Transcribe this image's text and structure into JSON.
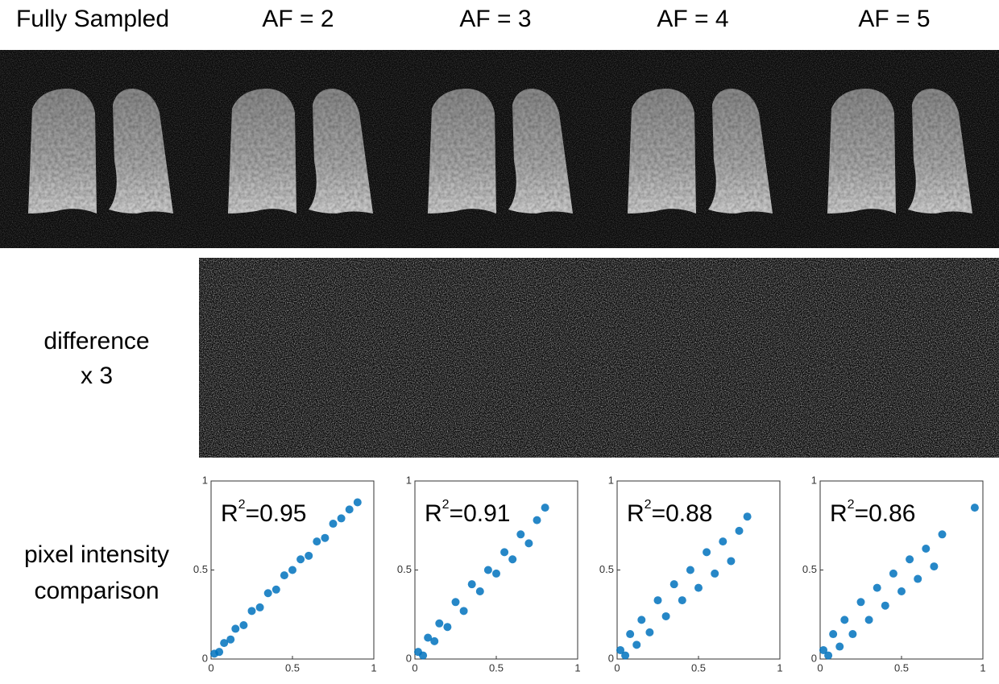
{
  "headers": [
    "Fully Sampled",
    "AF = 2",
    "AF = 3",
    "AF = 4",
    "AF = 5"
  ],
  "row_labels": {
    "difference": [
      "difference",
      "x 3"
    ],
    "comparison": [
      "pixel intensity",
      "comparison"
    ]
  },
  "chart_data": [
    {
      "type": "scatter",
      "annotation": {
        "base": "R",
        "sup": "2",
        "text": "=0.95"
      },
      "color": "#0072bd",
      "xlim": [
        0,
        1
      ],
      "ylim": [
        0,
        1
      ],
      "xticks": [
        0,
        0.5,
        1
      ],
      "yticks": [
        0,
        0.5,
        1
      ],
      "x": [
        0.02,
        0.05,
        0.08,
        0.12,
        0.15,
        0.2,
        0.25,
        0.3,
        0.35,
        0.4,
        0.45,
        0.5,
        0.55,
        0.6,
        0.65,
        0.7,
        0.75,
        0.8,
        0.85,
        0.9
      ],
      "values": [
        0.03,
        0.04,
        0.09,
        0.11,
        0.17,
        0.19,
        0.27,
        0.29,
        0.37,
        0.39,
        0.47,
        0.5,
        0.56,
        0.58,
        0.66,
        0.68,
        0.76,
        0.79,
        0.84,
        0.88
      ]
    },
    {
      "type": "scatter",
      "annotation": {
        "base": "R",
        "sup": "2",
        "text": "=0.91"
      },
      "color": "#0072bd",
      "xlim": [
        0,
        1
      ],
      "ylim": [
        0,
        1
      ],
      "xticks": [
        0,
        0.5,
        1
      ],
      "yticks": [
        0,
        0.5,
        1
      ],
      "x": [
        0.02,
        0.05,
        0.08,
        0.12,
        0.15,
        0.2,
        0.25,
        0.3,
        0.35,
        0.4,
        0.45,
        0.5,
        0.55,
        0.6,
        0.65,
        0.7,
        0.75,
        0.8
      ],
      "values": [
        0.04,
        0.02,
        0.12,
        0.1,
        0.2,
        0.18,
        0.32,
        0.27,
        0.42,
        0.38,
        0.5,
        0.48,
        0.6,
        0.56,
        0.7,
        0.65,
        0.78,
        0.85
      ]
    },
    {
      "type": "scatter",
      "annotation": {
        "base": "R",
        "sup": "2",
        "text": "=0.88"
      },
      "color": "#0072bd",
      "xlim": [
        0,
        1
      ],
      "ylim": [
        0,
        1
      ],
      "xticks": [
        0,
        0.5,
        1
      ],
      "yticks": [
        0,
        0.5,
        1
      ],
      "x": [
        0.02,
        0.05,
        0.08,
        0.12,
        0.15,
        0.2,
        0.25,
        0.3,
        0.35,
        0.4,
        0.45,
        0.5,
        0.55,
        0.6,
        0.65,
        0.7,
        0.75,
        0.8
      ],
      "values": [
        0.05,
        0.02,
        0.14,
        0.08,
        0.22,
        0.15,
        0.33,
        0.24,
        0.42,
        0.33,
        0.5,
        0.4,
        0.6,
        0.48,
        0.66,
        0.55,
        0.72,
        0.8
      ]
    },
    {
      "type": "scatter",
      "annotation": {
        "base": "R",
        "sup": "2",
        "text": "=0.86"
      },
      "color": "#0072bd",
      "xlim": [
        0,
        1
      ],
      "ylim": [
        0,
        1
      ],
      "xticks": [
        0,
        0.5,
        1
      ],
      "yticks": [
        0,
        0.5,
        1
      ],
      "x": [
        0.02,
        0.05,
        0.08,
        0.12,
        0.15,
        0.2,
        0.25,
        0.3,
        0.35,
        0.4,
        0.45,
        0.5,
        0.55,
        0.6,
        0.65,
        0.7,
        0.75,
        0.95
      ],
      "values": [
        0.05,
        0.02,
        0.14,
        0.07,
        0.22,
        0.14,
        0.32,
        0.22,
        0.4,
        0.3,
        0.48,
        0.38,
        0.56,
        0.45,
        0.62,
        0.52,
        0.7,
        0.85
      ]
    }
  ]
}
